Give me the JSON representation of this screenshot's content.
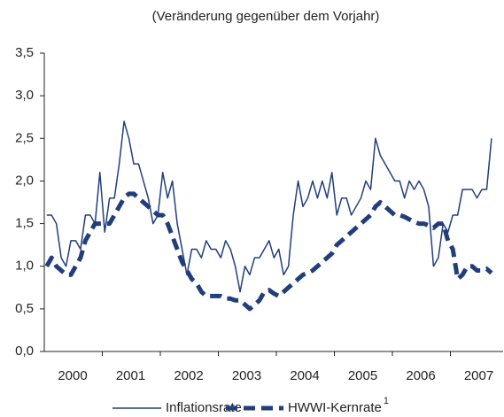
{
  "chart_data": {
    "type": "line",
    "title": "(Veränderung gegenüber dem Vorjahr)",
    "categories": [
      null,
      null,
      null,
      null,
      null,
      "2000",
      null,
      null,
      null,
      null,
      null,
      null,
      null,
      null,
      null,
      null,
      null,
      "2001",
      null,
      null,
      null,
      null,
      null,
      null,
      null,
      null,
      null,
      null,
      null,
      "2002",
      null,
      null,
      null,
      null,
      null,
      null,
      null,
      null,
      null,
      null,
      null,
      "2003",
      null,
      null,
      null,
      null,
      null,
      null,
      null,
      null,
      null,
      null,
      null,
      "2004",
      null,
      null,
      null,
      null,
      null,
      null,
      null,
      null,
      null,
      null,
      null,
      "2005",
      null,
      null,
      null,
      null,
      null,
      null,
      null,
      null,
      null,
      null,
      null,
      "2006",
      null,
      null,
      null,
      null,
      null,
      null,
      null,
      null,
      null,
      null,
      null,
      "2007",
      null,
      null,
      null
    ],
    "series": [
      {
        "name": "Inflationsrate",
        "color": "#213e7b",
        "style": "solid",
        "values": [
          1.6,
          1.6,
          1.5,
          1.1,
          1.0,
          1.3,
          1.3,
          1.2,
          1.6,
          1.6,
          1.5,
          2.1,
          1.4,
          1.8,
          1.8,
          2.2,
          2.7,
          2.5,
          2.2,
          2.2,
          2.0,
          1.8,
          1.5,
          1.6,
          2.1,
          1.8,
          2.0,
          1.5,
          1.2,
          0.9,
          1.2,
          1.2,
          1.1,
          1.3,
          1.2,
          1.2,
          1.1,
          1.3,
          1.2,
          1.0,
          0.7,
          1.0,
          0.9,
          1.1,
          1.1,
          1.2,
          1.3,
          1.1,
          1.2,
          0.9,
          1.0,
          1.6,
          2.0,
          1.7,
          1.8,
          2.0,
          1.8,
          2.0,
          1.8,
          2.1,
          1.6,
          1.8,
          1.8,
          1.6,
          1.7,
          1.8,
          2.0,
          1.9,
          2.5,
          2.3,
          2.2,
          2.1,
          2.0,
          2.0,
          1.8,
          2.0,
          1.9,
          2.0,
          1.9,
          1.7,
          1.0,
          1.1,
          1.5,
          1.4,
          1.6,
          1.6,
          1.9,
          1.9,
          1.9,
          1.8,
          1.9,
          1.9,
          2.5
        ]
      },
      {
        "name": "HWWI-Kernrate",
        "color": "#213e7b",
        "style": "dashed",
        "footnote_marker": "1",
        "values": [
          1.0,
          1.1,
          1.0,
          0.95,
          0.9,
          0.9,
          1.0,
          1.1,
          1.3,
          1.4,
          1.5,
          1.5,
          1.5,
          1.5,
          1.6,
          1.7,
          1.8,
          1.85,
          1.85,
          1.8,
          1.75,
          1.7,
          1.65,
          1.6,
          1.6,
          1.5,
          1.35,
          1.2,
          1.05,
          0.95,
          0.85,
          0.8,
          0.7,
          0.65,
          0.65,
          0.65,
          0.65,
          0.62,
          0.62,
          0.6,
          0.6,
          0.55,
          0.5,
          0.55,
          0.6,
          0.7,
          0.72,
          0.68,
          0.65,
          0.7,
          0.75,
          0.8,
          0.85,
          0.9,
          0.92,
          0.95,
          1.0,
          1.05,
          1.1,
          1.15,
          1.25,
          1.3,
          1.35,
          1.4,
          1.45,
          1.5,
          1.55,
          1.6,
          1.7,
          1.75,
          1.7,
          1.65,
          1.6,
          1.6,
          1.58,
          1.55,
          1.52,
          1.5,
          1.5,
          1.48,
          1.45,
          1.5,
          1.5,
          1.3,
          1.2,
          0.85,
          0.9,
          1.0,
          1.0,
          0.95,
          0.95,
          0.97,
          0.92
        ]
      }
    ],
    "ylim": [
      0,
      3.5
    ],
    "yticks": [
      {
        "value": 0,
        "label": "0,0"
      },
      {
        "value": 0.5,
        "label": "0,5"
      },
      {
        "value": 1,
        "label": "1,0"
      },
      {
        "value": 1.5,
        "label": "1,5"
      },
      {
        "value": 2,
        "label": "2,0"
      },
      {
        "value": 2.5,
        "label": "2,5"
      },
      {
        "value": 3,
        "label": "3,0"
      },
      {
        "value": 3.5,
        "label": "3,5"
      }
    ],
    "grid": false,
    "legend": "bottom"
  }
}
